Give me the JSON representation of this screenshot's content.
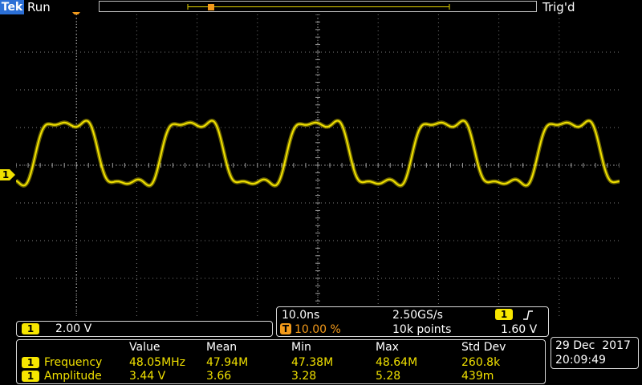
{
  "header": {
    "brand": "Tek",
    "acq_state": "Run",
    "trigger_status": "Trig'd"
  },
  "colors": {
    "channel1": "#f0e000",
    "trigger": "#f39a1a",
    "brand_bg": "#2b6fd6",
    "background": "#000000",
    "graticule": "#9a9a9a"
  },
  "markers": {
    "trigger_position": "T",
    "channel1_ground": "1"
  },
  "channel": {
    "number": "1",
    "scale": "2.00 V"
  },
  "horizontal": {
    "time_per_div": "10.0ns",
    "sample_rate": "2.50GS/s",
    "trigger_badge": "T",
    "trigger_position_percent": "10.00 %",
    "record_length": "10k points",
    "trigger_channel": "1",
    "trigger_slope_icon": "rising-edge-icon",
    "trigger_level": "1.60 V"
  },
  "measurements": {
    "headers": [
      "Value",
      "Mean",
      "Min",
      "Max",
      "Std Dev"
    ],
    "rows": [
      {
        "channel": "1",
        "name": "Frequency",
        "cells": [
          "48.05MHz",
          "47.94M",
          "47.38M",
          "48.64M",
          "260.8k"
        ]
      },
      {
        "channel": "1",
        "name": "Amplitude",
        "cells": [
          "3.44 V",
          "3.66",
          "3.28",
          "5.28",
          "439m"
        ]
      }
    ]
  },
  "datetime": {
    "date": "29 Dec  2017",
    "time": "20:09:49"
  },
  "waveform": {
    "frequency_mhz": 48.05,
    "time_per_div_ns": 10,
    "divisions_x": 10,
    "divisions_y": 8,
    "volts_per_div": 2.0,
    "amplitude_v": 3.44
  }
}
